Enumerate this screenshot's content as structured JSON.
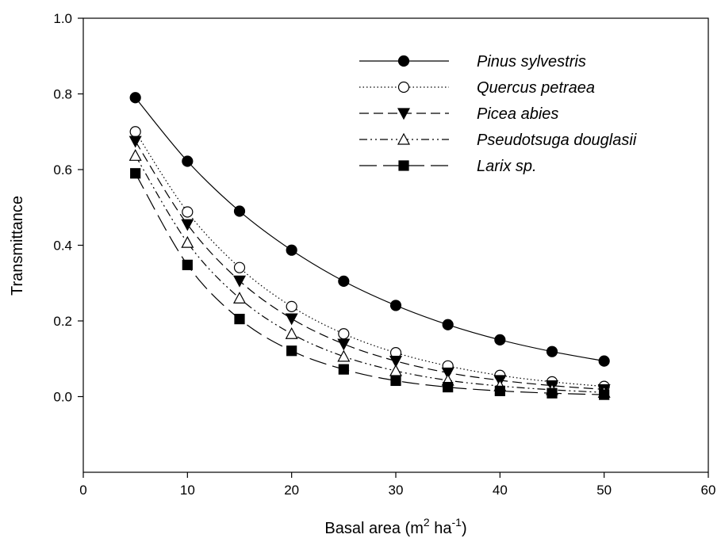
{
  "chart_data": {
    "type": "line",
    "title": "",
    "xlabel": "Basal area (m",
    "xlabel_sup1": "2",
    "xlabel_mid": " ha",
    "xlabel_sup2": "-1",
    "xlabel_end": ")",
    "ylabel": "Transmittance",
    "xlim": [
      0,
      60
    ],
    "ylim": [
      -0.2,
      1.0
    ],
    "xticks": [
      0,
      10,
      20,
      30,
      40,
      50,
      60
    ],
    "yticks": [
      0.0,
      0.2,
      0.4,
      0.6,
      0.8,
      1.0
    ],
    "xtick_labels": [
      "0",
      "10",
      "20",
      "30",
      "40",
      "50",
      "60"
    ],
    "ytick_labels": [
      "0.0",
      "0.2",
      "0.4",
      "0.6",
      "0.8",
      "1.0"
    ],
    "grid": false,
    "legend_position": "top-right",
    "x": [
      5,
      10,
      15,
      20,
      25,
      30,
      35,
      40,
      45,
      50
    ],
    "series": [
      {
        "name": "Pinus sylvestris",
        "marker": "filled-circle",
        "dash": "solid",
        "values": [
          0.79,
          0.622,
          0.49,
          0.387,
          0.305,
          0.241,
          0.19,
          0.15,
          0.119,
          0.094
        ]
      },
      {
        "name": "Quercus petraea",
        "marker": "open-circle",
        "dash": "dotted",
        "values": [
          0.7,
          0.488,
          0.341,
          0.238,
          0.166,
          0.116,
          0.081,
          0.056,
          0.039,
          0.027
        ]
      },
      {
        "name": "Picea abies",
        "marker": "filled-triangle-down",
        "dash": "dashed",
        "values": [
          0.675,
          0.455,
          0.306,
          0.206,
          0.139,
          0.094,
          0.063,
          0.043,
          0.029,
          0.019
        ]
      },
      {
        "name": "Pseudotsuga douglasii",
        "marker": "open-triangle-up",
        "dash": "dash-dot-dot",
        "values": [
          0.637,
          0.407,
          0.26,
          0.166,
          0.106,
          0.068,
          0.043,
          0.028,
          0.018,
          0.011
        ]
      },
      {
        "name": "Larix sp.",
        "marker": "filled-square",
        "dash": "long-dash",
        "values": [
          0.59,
          0.348,
          0.205,
          0.121,
          0.072,
          0.042,
          0.025,
          0.015,
          0.009,
          0.005
        ]
      }
    ]
  },
  "colors": {
    "line": "#000000",
    "background": "#ffffff"
  }
}
